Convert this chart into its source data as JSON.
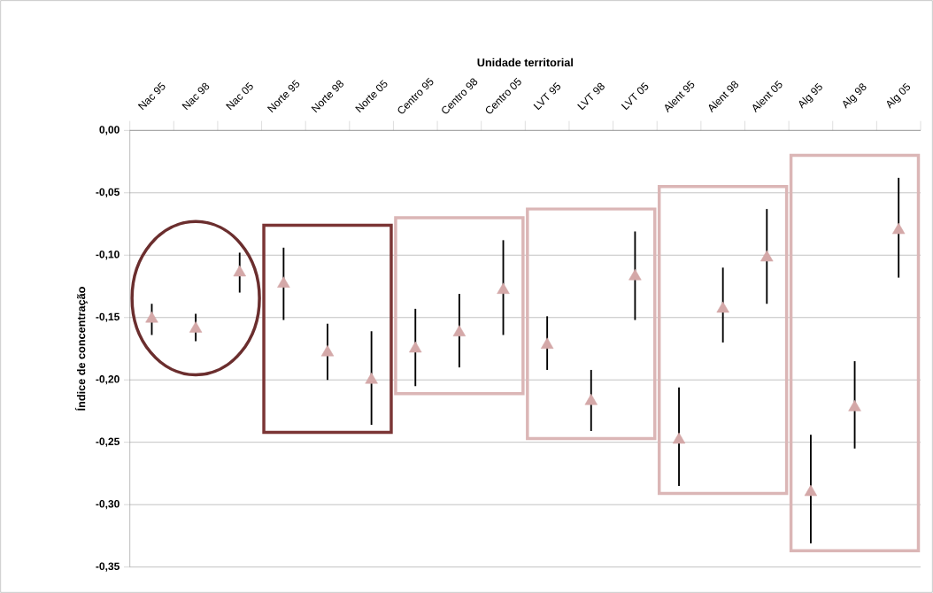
{
  "chart_data": {
    "type": "scatter",
    "xlabel": "Unidade territorial",
    "ylabel": "Índice de concentração",
    "categories": [
      "Nac 95",
      "Nac 98",
      "Nac 05",
      "Norte 95",
      "Norte 98",
      "Norte 05",
      "Centro 95",
      "Centro 98",
      "Centro 05",
      "LVT 95",
      "LVT 98",
      "LVT 05",
      "Alent 95",
      "Alent 98",
      "Alent 05",
      "Alg 95",
      "Alg 98",
      "Alg 05"
    ],
    "values": [
      -0.151,
      -0.159,
      -0.114,
      -0.123,
      -0.178,
      -0.2,
      -0.175,
      -0.162,
      -0.128,
      -0.172,
      -0.217,
      -0.117,
      -0.248,
      -0.143,
      -0.102,
      -0.29,
      -0.222,
      -0.08
    ],
    "errors": [
      [
        -0.164,
        -0.139
      ],
      [
        -0.169,
        -0.147
      ],
      [
        -0.13,
        -0.098
      ],
      [
        -0.152,
        -0.094
      ],
      [
        -0.2,
        -0.155
      ],
      [
        -0.236,
        -0.161
      ],
      [
        -0.205,
        -0.143
      ],
      [
        -0.19,
        -0.131
      ],
      [
        -0.164,
        -0.088
      ],
      [
        -0.192,
        -0.149
      ],
      [
        -0.241,
        -0.192
      ],
      [
        -0.152,
        -0.081
      ],
      [
        -0.285,
        -0.206
      ],
      [
        -0.17,
        -0.11
      ],
      [
        -0.139,
        -0.063
      ],
      [
        -0.331,
        -0.244
      ],
      [
        -0.255,
        -0.185
      ],
      [
        -0.118,
        -0.038
      ]
    ],
    "color": "#d4a8a8",
    "marker": "triangle",
    "grid": "y",
    "ylim": [
      -0.35,
      0
    ],
    "yticks": [
      {
        "value": 0,
        "label": "0,00"
      },
      {
        "value": -0.05,
        "label": "-0,05"
      },
      {
        "value": -0.1,
        "label": "-0,10"
      },
      {
        "value": -0.15,
        "label": "-0,15"
      },
      {
        "value": -0.2,
        "label": "-0,20"
      },
      {
        "value": -0.25,
        "label": "-0,25"
      },
      {
        "value": -0.3,
        "label": "-0,30"
      },
      {
        "value": -0.35,
        "label": "-0,35"
      }
    ]
  }
}
